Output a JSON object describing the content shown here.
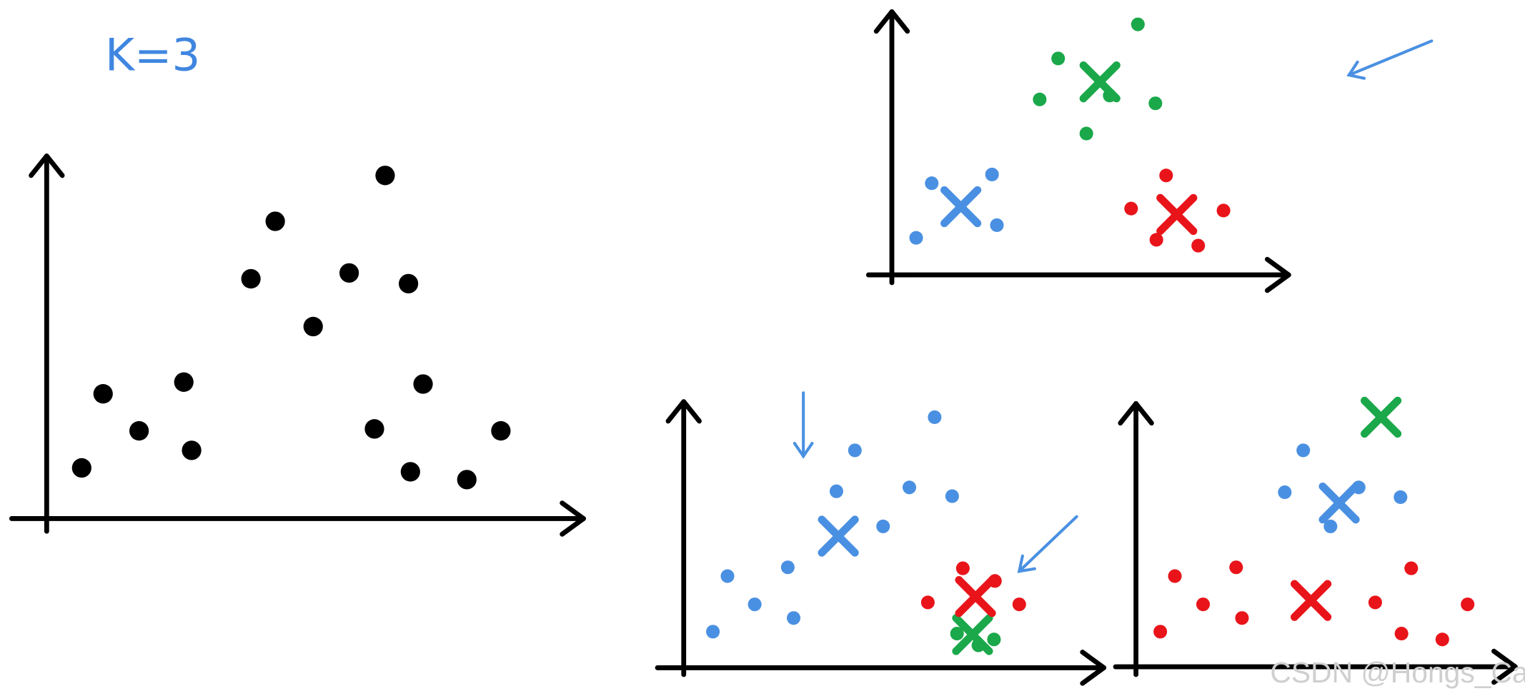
{
  "annotation": {
    "k_label": "K=3"
  },
  "watermark": "CSDN @Hongs_Cai"
}
